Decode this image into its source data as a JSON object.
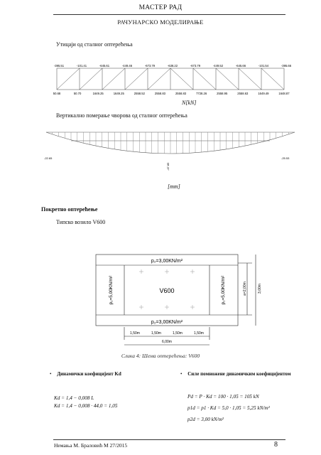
{
  "header": {
    "title": "МАСТЕР РАД",
    "subtitle": "РАЧУНАРСКО МОДЕЛИРАЊЕ"
  },
  "fig1": {
    "caption": "Утицаји од сталног оптерећења",
    "unit": "N[kN]",
    "top_values": [
      "-395.51",
      "-101.41",
      "-645.61",
      "-449.46",
      "-673.79",
      "-638.22",
      "-673.79",
      "-449.52",
      "-645.66",
      "-101.54",
      "-395.66"
    ],
    "bottom_values": [
      "50.68",
      "50.70",
      "1649.25",
      "1649.25",
      "2558.52",
      "2558.83",
      "2558.83",
      "7728.26",
      "2558.95",
      "2558.63",
      "1649.49",
      "1648.87"
    ]
  },
  "fig2": {
    "caption": "Вертикално померање чворова од сталног оптерећења",
    "unit": "[mm]",
    "mid_label": "-47.85",
    "left_label": "-22.65",
    "right_label": "-25.53"
  },
  "section": {
    "heading": "Покретно оптерећење",
    "subheading": "Типско возило V600"
  },
  "vehicle": {
    "top_load": "p₂=3,00KN/m²",
    "bottom_load": "p₂=3,00KN/m²",
    "left_load": "p₁=5,00KN/m²",
    "right_load": "p₁=5,00KN/m²",
    "center_label": "V600",
    "dim_a": "a=2,00m",
    "dim_total_v": "3,00m",
    "dims_h": [
      "1,50m",
      "1,50m",
      "1,50m",
      "1,50m"
    ],
    "dim_total_h": "6,00m",
    "caption": "Слика 4: Шема оптерећења: V600"
  },
  "bullets": {
    "left_title": "Динамички коефицијент Kd",
    "right_title": "Силе помножене динамичким коефицијентом",
    "left_eq1": "Kd = 1,4 − 0,008 L",
    "left_eq2": "Kd = 1,4 − 0,008 · 44,0 = 1,05",
    "right_eq1": "Pd = P · Kd = 100 · 1,05 = 105 kN",
    "right_eq2": "p1d = p1 · Kd = 5,0 · 1,05 = 5,25 kN/m²",
    "right_eq3": "p2d = 3,00 kN/m²"
  },
  "footer": {
    "author": "Немања М. Браловић М 27/2015",
    "page": "8"
  }
}
